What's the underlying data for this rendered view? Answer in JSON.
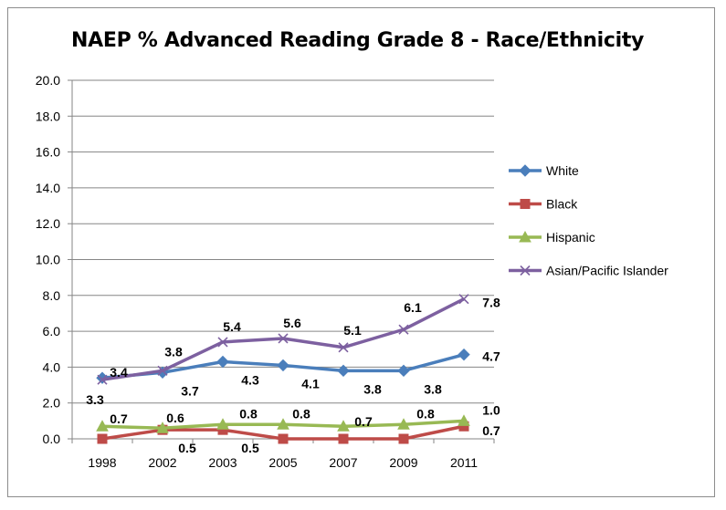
{
  "chart_data": {
    "type": "line",
    "title": "NAEP % Advanced Reading Grade 8 - Race/Ethnicity",
    "categories": [
      "1998",
      "2002",
      "2003",
      "2005",
      "2007",
      "2009",
      "2011"
    ],
    "ylim": [
      0,
      20
    ],
    "yticks": [
      "0.0",
      "2.0",
      "4.0",
      "6.0",
      "8.0",
      "10.0",
      "12.0",
      "14.0",
      "16.0",
      "18.0",
      "20.0"
    ],
    "grid": true,
    "legend": "right",
    "series": [
      {
        "name": "White",
        "values": [
          3.4,
          3.7,
          4.3,
          4.1,
          3.8,
          3.8,
          4.7
        ],
        "labels": [
          "3.4",
          "3.7",
          "4.3",
          "4.1",
          "3.8",
          "3.8",
          "4.7"
        ],
        "color": "#4a7ebb",
        "marker": "diamond"
      },
      {
        "name": "Black",
        "values": [
          0.0,
          0.5,
          0.5,
          0.0,
          0.0,
          0.0,
          0.7
        ],
        "labels": [
          "",
          "0.5",
          "0.5",
          "",
          "",
          "",
          "0.7"
        ],
        "color": "#be4b48",
        "marker": "square"
      },
      {
        "name": "Hispanic",
        "values": [
          0.7,
          0.6,
          0.8,
          0.8,
          0.7,
          0.8,
          1.0
        ],
        "labels": [
          "0.7",
          "0.6",
          "0.8",
          "0.8",
          "0.7",
          "0.8",
          "1.0"
        ],
        "color": "#98b954",
        "marker": "triangle"
      },
      {
        "name": "Asian/Pacific Islander",
        "values": [
          3.3,
          3.8,
          5.4,
          5.6,
          5.1,
          6.1,
          7.8
        ],
        "labels": [
          "3.3",
          "3.8",
          "5.4",
          "5.6",
          "5.1",
          "6.1",
          "7.8"
        ],
        "color": "#7d60a0",
        "marker": "x"
      }
    ]
  }
}
